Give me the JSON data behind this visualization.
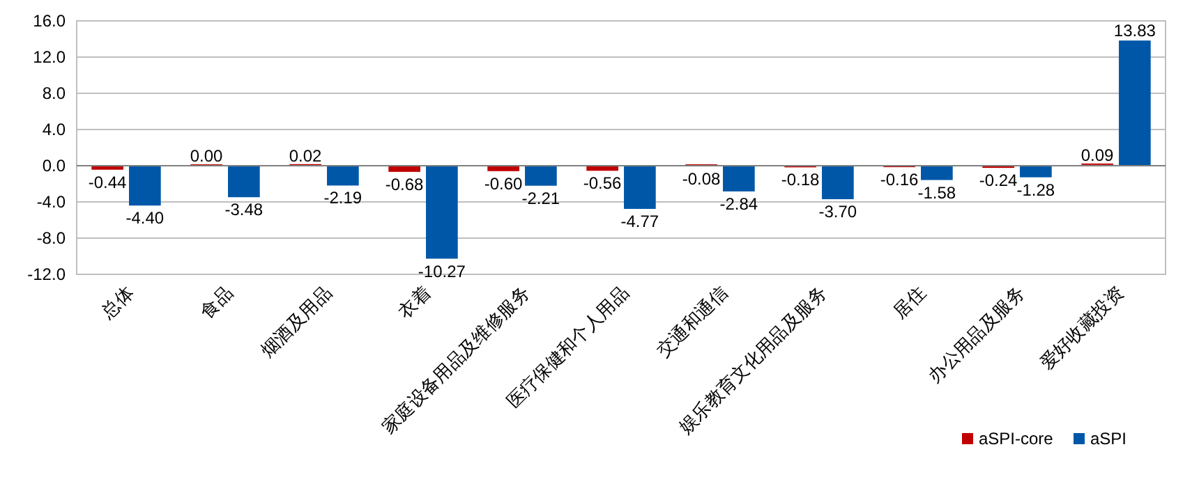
{
  "chart_data": {
    "type": "bar",
    "categories": [
      "总体",
      "食品",
      "烟酒及用品",
      "衣着",
      "家庭设备用品及维修服务",
      "医疗保健和个人用品",
      "交通和通信",
      "娱乐教育文化用品及服务",
      "居住",
      "办公用品及服务",
      "爱好收藏投资"
    ],
    "series": [
      {
        "name": "aSPI-core",
        "color": "#c00000",
        "values": [
          -0.44,
          0.0,
          0.02,
          -0.68,
          -0.6,
          -0.56,
          -0.08,
          -0.18,
          -0.16,
          -0.24,
          0.09
        ],
        "value_labels": [
          "-0.44",
          "0.00",
          "0.02",
          "-0.68",
          "-0.60",
          "-0.56",
          "-0.08",
          "-0.18",
          "-0.16",
          "-0.24",
          "0.09"
        ]
      },
      {
        "name": "aSPI",
        "color": "#0057a8",
        "values": [
          -4.4,
          -3.48,
          -2.19,
          -10.27,
          -2.21,
          -4.77,
          -2.84,
          -3.7,
          -1.58,
          -1.28,
          13.83
        ],
        "value_labels": [
          "-4.40",
          "-3.48",
          "-2.19",
          "-10.27",
          "-2.21",
          "-4.77",
          "-2.84",
          "-3.70",
          "-1.58",
          "-1.28",
          "13.83"
        ]
      }
    ],
    "ylim": [
      -12,
      16
    ],
    "yticks": [
      {
        "value": -12,
        "label": "-12.0"
      },
      {
        "value": -8,
        "label": "-8.0"
      },
      {
        "value": -4,
        "label": "-4.0"
      },
      {
        "value": 0,
        "label": "0.0"
      },
      {
        "value": 4,
        "label": "4.0"
      },
      {
        "value": 8,
        "label": "8.0"
      },
      {
        "value": 12,
        "label": "12.0"
      },
      {
        "value": 16,
        "label": "16.0"
      }
    ],
    "grid": "y",
    "legend": "bottom right"
  }
}
